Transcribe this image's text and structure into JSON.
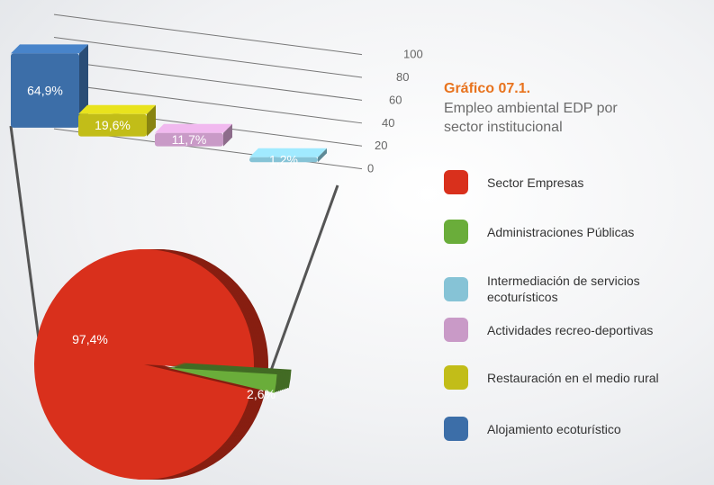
{
  "header": {
    "title": "Gráfico 07.1.",
    "subtitle": "Empleo ambiental EDP por sector institucional"
  },
  "chart_data": [
    {
      "type": "pie",
      "categories": [
        "Sector Empresas",
        "Administraciones Públicas"
      ],
      "values": [
        97.4,
        2.6
      ],
      "value_labels": [
        "97,4%",
        "2,6%"
      ],
      "colors": [
        "#d9301c",
        "#6aad3a"
      ]
    },
    {
      "type": "bar",
      "categories": [
        "Alojamiento ecoturístico",
        "Restauración en el medio rural",
        "Actividades recreo-deportivas",
        "Intermediación de servicios ecoturísticos"
      ],
      "values": [
        64.9,
        19.6,
        11.7,
        1.2
      ],
      "value_labels": [
        "64,9%",
        "19,6%",
        "11,7%",
        "1,2%"
      ],
      "colors": [
        "#3c6ea8",
        "#c2bd18",
        "#c99ac7",
        "#86c3d6"
      ],
      "ylim": [
        0,
        100
      ],
      "yticks": [
        0,
        20,
        40,
        60,
        80,
        100
      ],
      "grid": true
    }
  ]
}
